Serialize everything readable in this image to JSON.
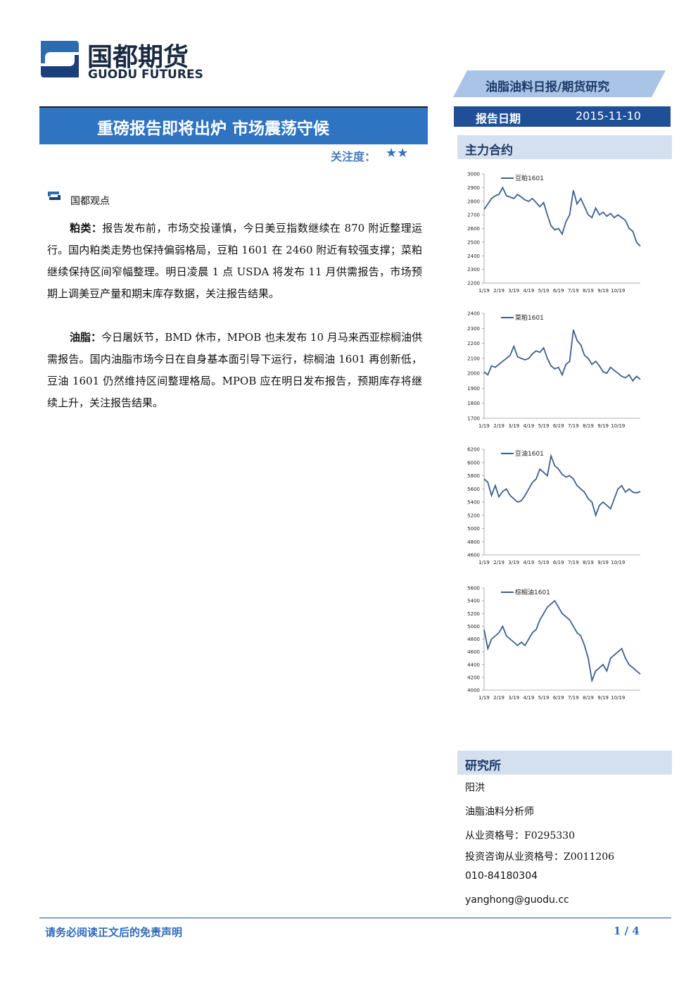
{
  "header": {
    "logo_cn": "国都期货",
    "logo_en": "GUODU FUTURES",
    "tag": "油脂油料日报/期货研究",
    "date_label": "报告日期",
    "date": "2015-11-10"
  },
  "title": "重磅报告即将出炉 市场震荡守候",
  "attention": {
    "label": "关注度：",
    "stars": "★★"
  },
  "section": "国都观点",
  "paragraphs": [
    {
      "label": "粕类：",
      "text": "报告发布前，市场交投谨慎，今日美豆指数继续在 870 附近整理运行。国内粕类走势也保持偏弱格局，豆粕 1601 在 2460 附近有较强支撑；菜粕继续保持区间窄幅整理。明日凌晨 1 点 USDA 将发布 11 月供需报告，市场预期上调美豆产量和期末库存数据，关注报告结果。"
    },
    {
      "label": "油脂：",
      "text": "今日屠妖节，BMD 休市，MPOB 也未发布 10 月马来西亚棕榈油供需报告。国内油脂市场今日在自身基本面引导下运行，棕榈油 1601 再创新低，豆油 1601 仍然维持区间整理格局。MPOB 应在明日发布报告，预期库存将继续上升，关注报告结果。"
    }
  ],
  "sidebar": {
    "contracts_title": "主力合约",
    "research_title": "研究所",
    "contacts": [
      "阳洪",
      "油脂油料分析师",
      "从业资格号：F0295330",
      "投资咨询从业资格号：Z0011206",
      "010-84180304",
      "yanghong@guodu.cc"
    ]
  },
  "chart_data": [
    {
      "type": "line",
      "categories": [
        "1/19",
        null,
        null,
        null,
        "2/19",
        null,
        null,
        null,
        "3/19",
        null,
        null,
        null,
        "4/19",
        null,
        null,
        null,
        "5/19",
        null,
        null,
        null,
        "6/19",
        null,
        null,
        null,
        "7/19",
        null,
        null,
        null,
        "8/19",
        null,
        null,
        null,
        "9/19",
        null,
        null,
        null,
        "10/19",
        null,
        null,
        null,
        null,
        null,
        null
      ],
      "series": [
        {
          "name": "豆粕1601",
          "color": "#3c5f8e",
          "values": [
            2740,
            2780,
            2820,
            2840,
            2850,
            2900,
            2840,
            2830,
            2820,
            2850,
            2830,
            2810,
            2800,
            2820,
            2790,
            2760,
            2790,
            2700,
            2620,
            2590,
            2600,
            2560,
            2650,
            2700,
            2880,
            2780,
            2820,
            2760,
            2700,
            2680,
            2750,
            2700,
            2720,
            2690,
            2710,
            2680,
            2700,
            2680,
            2660,
            2600,
            2580,
            2500,
            2470
          ]
        }
      ],
      "ylim": [
        2200,
        3000
      ],
      "yticks": [
        2200,
        2300,
        2400,
        2500,
        2600,
        2700,
        2800,
        2900,
        3000
      ]
    },
    {
      "type": "line",
      "categories": [
        "1/19",
        null,
        null,
        null,
        "2/19",
        null,
        null,
        null,
        "3/19",
        null,
        null,
        null,
        "4/19",
        null,
        null,
        null,
        "5/19",
        null,
        null,
        null,
        "6/19",
        null,
        null,
        null,
        "7/19",
        null,
        null,
        null,
        "8/19",
        null,
        null,
        null,
        "9/19",
        null,
        null,
        null,
        "10/19",
        null,
        null,
        null,
        null,
        null,
        null
      ],
      "series": [
        {
          "name": "菜粕1601",
          "color": "#3c5f8e",
          "values": [
            2010,
            1990,
            2050,
            2040,
            2060,
            2080,
            2100,
            2120,
            2180,
            2110,
            2100,
            2090,
            2100,
            2130,
            2150,
            2140,
            2170,
            2100,
            2050,
            2030,
            2040,
            1990,
            2060,
            2080,
            2290,
            2220,
            2190,
            2120,
            2100,
            2060,
            2080,
            2050,
            2010,
            2000,
            2040,
            2020,
            2000,
            1980,
            1970,
            1990,
            1950,
            1980,
            1960
          ]
        }
      ],
      "ylim": [
        1700,
        2400
      ],
      "yticks": [
        1700,
        1800,
        1900,
        2000,
        2100,
        2200,
        2300,
        2400
      ]
    },
    {
      "type": "line",
      "categories": [
        "1/19",
        null,
        null,
        null,
        "2/19",
        null,
        null,
        null,
        "3/19",
        null,
        null,
        null,
        "4/19",
        null,
        null,
        null,
        "5/19",
        null,
        null,
        null,
        "6/19",
        null,
        null,
        null,
        "7/19",
        null,
        null,
        null,
        "8/19",
        null,
        null,
        null,
        "9/19",
        null,
        null,
        null,
        "10/19",
        null,
        null,
        null,
        null,
        null,
        null
      ],
      "series": [
        {
          "name": "豆油1601",
          "color": "#3c5f8e",
          "values": [
            5750,
            5700,
            5500,
            5650,
            5480,
            5560,
            5600,
            5500,
            5450,
            5400,
            5420,
            5500,
            5600,
            5700,
            5750,
            5900,
            5850,
            5800,
            6100,
            5950,
            5900,
            5820,
            5780,
            5800,
            5750,
            5650,
            5600,
            5550,
            5450,
            5400,
            5200,
            5350,
            5400,
            5350,
            5300,
            5450,
            5600,
            5650,
            5550,
            5600,
            5550,
            5540,
            5560
          ]
        }
      ],
      "ylim": [
        4600,
        6200
      ],
      "yticks": [
        4600,
        4800,
        5000,
        5200,
        5400,
        5600,
        5800,
        6000,
        6200
      ]
    },
    {
      "type": "line",
      "categories": [
        "1/19",
        null,
        null,
        null,
        "2/19",
        null,
        null,
        null,
        "3/19",
        null,
        null,
        null,
        "4/19",
        null,
        null,
        null,
        "5/19",
        null,
        null,
        null,
        "6/19",
        null,
        null,
        null,
        "7/19",
        null,
        null,
        null,
        "8/19",
        null,
        null,
        null,
        "9/19",
        null,
        null,
        null,
        "10/19",
        null,
        null,
        null,
        null,
        null,
        null
      ],
      "series": [
        {
          "name": "棕榈油1601",
          "color": "#3c5f8e",
          "values": [
            4950,
            4650,
            4800,
            4850,
            4900,
            5000,
            4850,
            4800,
            4750,
            4700,
            4750,
            4700,
            4800,
            4900,
            4950,
            5100,
            5200,
            5300,
            5350,
            5400,
            5300,
            5200,
            5150,
            5100,
            5000,
            4900,
            4850,
            4700,
            4500,
            4150,
            4300,
            4350,
            4400,
            4300,
            4500,
            4550,
            4600,
            4650,
            4500,
            4400,
            4350,
            4300,
            4250
          ]
        }
      ],
      "ylim": [
        4000,
        5600
      ],
      "yticks": [
        4000,
        4200,
        4400,
        4600,
        4800,
        5000,
        5200,
        5400,
        5600
      ]
    }
  ],
  "footer": {
    "disclaimer": "请务必阅读正文后的免责声明",
    "page": "1 / 4"
  }
}
